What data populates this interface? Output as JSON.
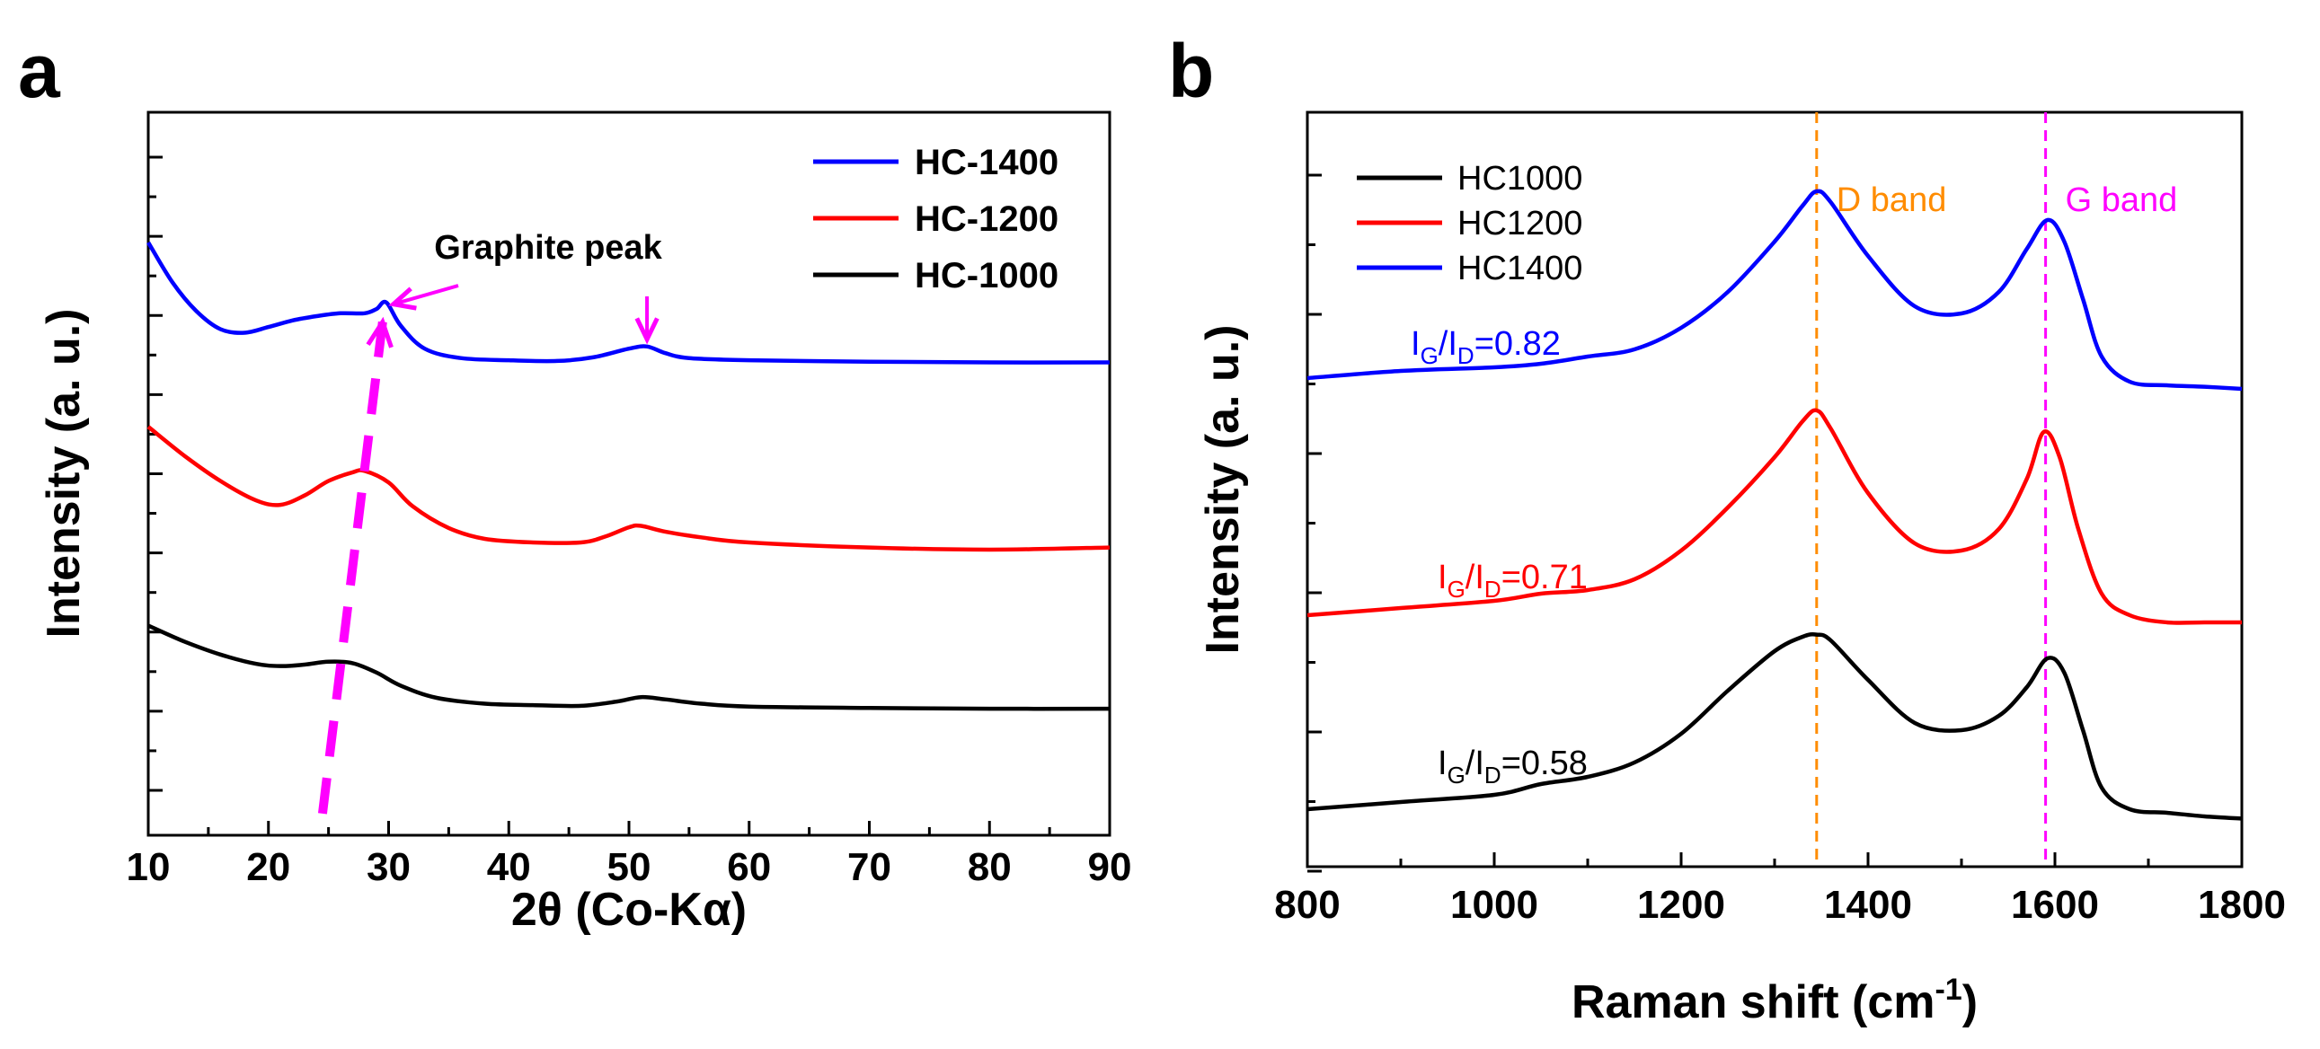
{
  "chart_data": [
    {
      "panel": "a",
      "type": "line",
      "title": "",
      "xlabel": "2θ (Co-Kα)",
      "ylabel": "Intensity (a. u.)",
      "xlim": [
        10,
        90
      ],
      "xticks": [
        10,
        20,
        30,
        40,
        50,
        60,
        70,
        80,
        90
      ],
      "yticks_labeled": false,
      "legend_position": "top-right",
      "series": [
        {
          "name": "HC-1400",
          "color": "#0000ff",
          "x": [
            10,
            12,
            14,
            16,
            18,
            20,
            22,
            24,
            26,
            28,
            29,
            29.8,
            31,
            33,
            36,
            40,
            44,
            47,
            50,
            51.5,
            53,
            55,
            60,
            70,
            80,
            90
          ],
          "y": [
            0.82,
            0.765,
            0.725,
            0.7,
            0.695,
            0.703,
            0.712,
            0.718,
            0.722,
            0.722,
            0.728,
            0.737,
            0.705,
            0.673,
            0.66,
            0.657,
            0.656,
            0.661,
            0.673,
            0.676,
            0.667,
            0.66,
            0.657,
            0.655,
            0.654,
            0.654
          ]
        },
        {
          "name": "HC-1200",
          "color": "#ff0000",
          "x": [
            10,
            13,
            16,
            19,
            21,
            23,
            25,
            27,
            28,
            30,
            32,
            35,
            38,
            42,
            46,
            48,
            50,
            51,
            53,
            56,
            60,
            70,
            80,
            90
          ],
          "y": [
            0.565,
            0.525,
            0.49,
            0.463,
            0.457,
            0.47,
            0.49,
            0.502,
            0.504,
            0.488,
            0.455,
            0.425,
            0.41,
            0.405,
            0.405,
            0.413,
            0.426,
            0.428,
            0.42,
            0.412,
            0.405,
            0.398,
            0.395,
            0.398
          ]
        },
        {
          "name": "HC-1000",
          "color": "#000000",
          "x": [
            10,
            13,
            16,
            19,
            21,
            23,
            25,
            27,
            29,
            31,
            34,
            38,
            42,
            46,
            49,
            51,
            53,
            56,
            60,
            70,
            80,
            90
          ],
          "y": [
            0.29,
            0.268,
            0.25,
            0.237,
            0.234,
            0.236,
            0.24,
            0.238,
            0.225,
            0.207,
            0.19,
            0.182,
            0.18,
            0.179,
            0.185,
            0.191,
            0.188,
            0.182,
            0.178,
            0.176,
            0.175,
            0.175
          ]
        }
      ],
      "annotations": {
        "graphite_peak": "Graphite peak",
        "arrows_to": [
          [
            29.8,
            0.737
          ],
          [
            51.5,
            0.676
          ]
        ],
        "dashed_shift_arrow": {
          "from": [
            24.5,
            0.03
          ],
          "to": [
            29.5,
            0.71
          ],
          "color": "#ff00ff"
        }
      },
      "ylim": [
        0,
        1
      ]
    },
    {
      "panel": "b",
      "type": "line",
      "title": "",
      "xlabel": "Raman shift (cm",
      "xlabel_sup": "-1",
      "xlabel_end": ")",
      "ylabel": "Intensity (a. u.)",
      "xlim": [
        800,
        1800
      ],
      "xticks": [
        800,
        1000,
        1200,
        1400,
        1600,
        1800
      ],
      "yticks_labeled": false,
      "legend_position": "top-left",
      "series": [
        {
          "name": "HC1000",
          "color": "#000000",
          "x": [
            800,
            900,
            1000,
            1050,
            1100,
            1150,
            1200,
            1250,
            1300,
            1330,
            1345,
            1360,
            1400,
            1450,
            1500,
            1540,
            1570,
            1592,
            1610,
            1630,
            1650,
            1680,
            1720,
            1760,
            1800
          ],
          "y": [
            0.08,
            0.09,
            0.1,
            0.115,
            0.125,
            0.145,
            0.185,
            0.245,
            0.3,
            0.32,
            0.323,
            0.315,
            0.26,
            0.2,
            0.19,
            0.21,
            0.25,
            0.29,
            0.27,
            0.19,
            0.11,
            0.08,
            0.075,
            0.07,
            0.067
          ]
        },
        {
          "name": "HC1200",
          "color": "#ff0000",
          "x": [
            800,
            900,
            1000,
            1050,
            1100,
            1150,
            1200,
            1250,
            1300,
            1330,
            1345,
            1360,
            1400,
            1450,
            1500,
            1540,
            1570,
            1588,
            1605,
            1625,
            1650,
            1680,
            1720,
            1760,
            1800
          ],
          "y": [
            0.35,
            0.36,
            0.37,
            0.38,
            0.385,
            0.4,
            0.44,
            0.5,
            0.57,
            0.62,
            0.635,
            0.61,
            0.52,
            0.45,
            0.44,
            0.47,
            0.54,
            0.605,
            0.57,
            0.47,
            0.38,
            0.35,
            0.34,
            0.34,
            0.34
          ]
        },
        {
          "name": "HC1400",
          "color": "#0000ff",
          "x": [
            800,
            900,
            1000,
            1050,
            1100,
            1150,
            1200,
            1250,
            1300,
            1330,
            1345,
            1360,
            1400,
            1450,
            1500,
            1540,
            1570,
            1592,
            1610,
            1630,
            1650,
            1680,
            1720,
            1760,
            1800
          ],
          "y": [
            0.68,
            0.69,
            0.695,
            0.7,
            0.71,
            0.72,
            0.75,
            0.8,
            0.87,
            0.92,
            0.94,
            0.925,
            0.85,
            0.78,
            0.77,
            0.8,
            0.86,
            0.9,
            0.87,
            0.79,
            0.71,
            0.675,
            0.67,
            0.668,
            0.665
          ]
        }
      ],
      "bands": [
        {
          "label": "D band",
          "x": 1345,
          "color": "#ff8c00"
        },
        {
          "label": "G band",
          "x": 1590,
          "color": "#ff00ff"
        }
      ],
      "ratios": [
        {
          "series": "HC1400",
          "prefix": "I",
          "sub1": "G",
          "slash": "/I",
          "sub2": "D",
          "value": "=0.82",
          "color": "#0000ff"
        },
        {
          "series": "HC1200",
          "prefix": "I",
          "sub1": "G",
          "slash": "/I",
          "sub2": "D",
          "value": "=0.71",
          "color": "#ff0000"
        },
        {
          "series": "HC1000",
          "prefix": "I",
          "sub1": "G",
          "slash": "/I",
          "sub2": "D",
          "value": "=0.58",
          "color": "#000000"
        }
      ],
      "ylim": [
        0,
        1.05
      ]
    }
  ],
  "panels": {
    "a": {
      "letter": "a"
    },
    "b": {
      "letter": "b"
    }
  }
}
